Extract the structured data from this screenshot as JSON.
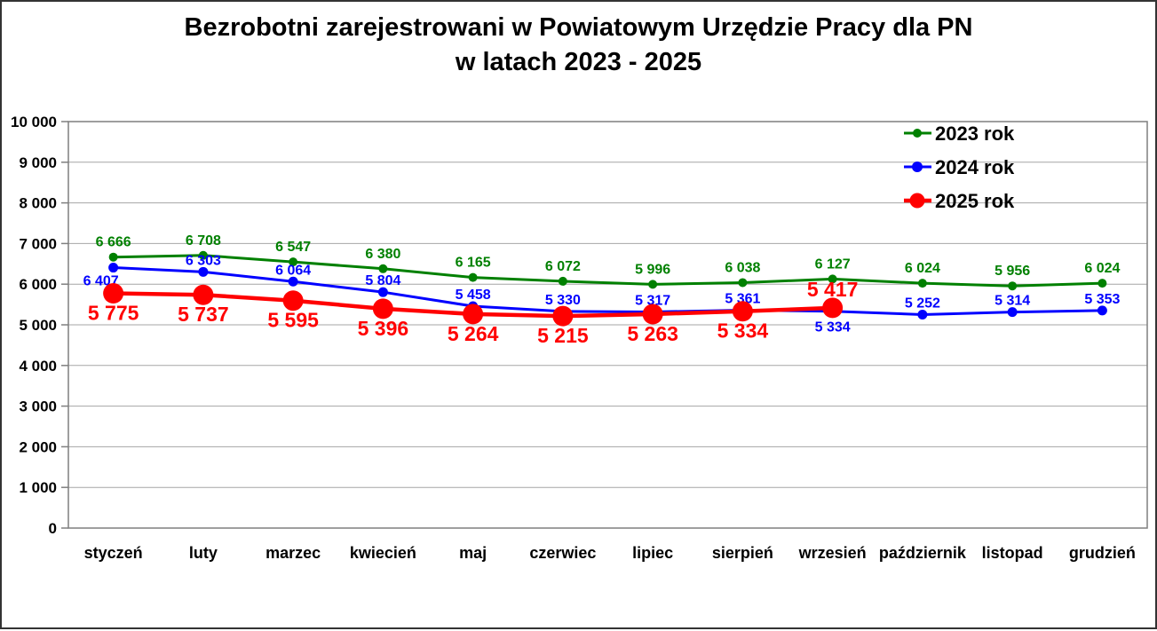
{
  "title": {
    "line1": "Bezrobotni zarejestrowani w Powiatowym Urzędzie Pracy dla PN",
    "line2": "w latach 2023 - 2025"
  },
  "chart_data": {
    "type": "line",
    "title": "Bezrobotni zarejestrowani w Powiatowym Urzędzie Pracy dla PN w latach 2023 - 2025",
    "xlabel": "",
    "ylabel": "",
    "ylim": [
      0,
      10000
    ],
    "ytick_step": 1000,
    "ytick_labels": [
      "0",
      "1 000",
      "2 000",
      "3 000",
      "4 000",
      "5 000",
      "6 000",
      "7 000",
      "8 000",
      "9 000",
      "10 000"
    ],
    "grid": true,
    "legend_position": "top-right",
    "categories": [
      "styczeń",
      "luty",
      "marzec",
      "kwiecień",
      "maj",
      "czerwiec",
      "lipiec",
      "sierpień",
      "wrzesień",
      "październik",
      "listopad",
      "grudzień"
    ],
    "series": [
      {
        "name": "2023 rok",
        "color": "#008000",
        "values": [
          6666,
          6708,
          6547,
          6380,
          6165,
          6072,
          5996,
          6038,
          6127,
          6024,
          5956,
          6024
        ],
        "label_positions": [
          "above",
          "above",
          "above",
          "above",
          "above",
          "above",
          "above",
          "above",
          "above",
          "above",
          "above",
          "above"
        ]
      },
      {
        "name": "2024 rok",
        "color": "#0000ff",
        "values": [
          6407,
          6303,
          6064,
          5804,
          5458,
          5330,
          5317,
          5361,
          5334,
          5252,
          5314,
          5353
        ],
        "label_positions": [
          "below-left",
          "above",
          "above",
          "above",
          "above",
          "above",
          "above",
          "above",
          "below",
          "above",
          "above",
          "above"
        ]
      },
      {
        "name": "2025 rok",
        "color": "#ff0000",
        "values": [
          5775,
          5737,
          5595,
          5396,
          5264,
          5215,
          5263,
          5334,
          5417
        ],
        "label_positions": [
          "below",
          "below",
          "below",
          "below",
          "below",
          "below",
          "below",
          "below",
          "above"
        ]
      }
    ],
    "colors": {
      "gridline": "#a6a6a6",
      "plot_border": "#7f7f7f",
      "axis_text": "#000000",
      "page_border": "#333333"
    }
  }
}
